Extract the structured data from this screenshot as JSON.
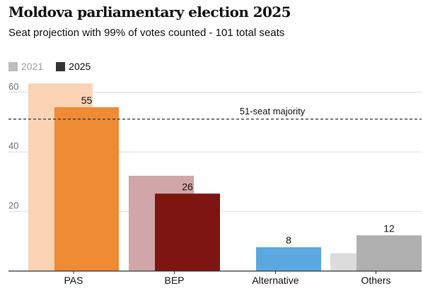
{
  "title": "Moldova parliamentary election 2025",
  "subtitle": "Seat projection with 99% of votes counted - 101 total seats",
  "chart_data": {
    "type": "bar",
    "categories": [
      "PAS",
      "BEP",
      "Alternative",
      "Others"
    ],
    "series": [
      {
        "name": "2021",
        "values": [
          63,
          32,
          0,
          6
        ]
      },
      {
        "name": "2025",
        "values": [
          55,
          26,
          8,
          12
        ]
      }
    ],
    "data_labels_series": "2025",
    "ylim": [
      0,
      65
    ],
    "yticks": [
      20,
      40,
      60
    ],
    "grid": true,
    "legend_position": "top-left",
    "reference_line": {
      "value": 51,
      "label": "51-seat majority",
      "style": "dashed"
    }
  },
  "colors": {
    "2021": {
      "PAS": "#fbd3b5",
      "BEP": "#d1a6a8",
      "Alternative": "#9fd0ee",
      "Others": "#dcdcdc"
    },
    "2025": {
      "PAS": "#ef8a35",
      "BEP": "#7d1511",
      "Alternative": "#5ba8e1",
      "Others": "#b0b0b0"
    },
    "legend": {
      "2021": "#bdbdbd",
      "2025": "#333333"
    }
  }
}
